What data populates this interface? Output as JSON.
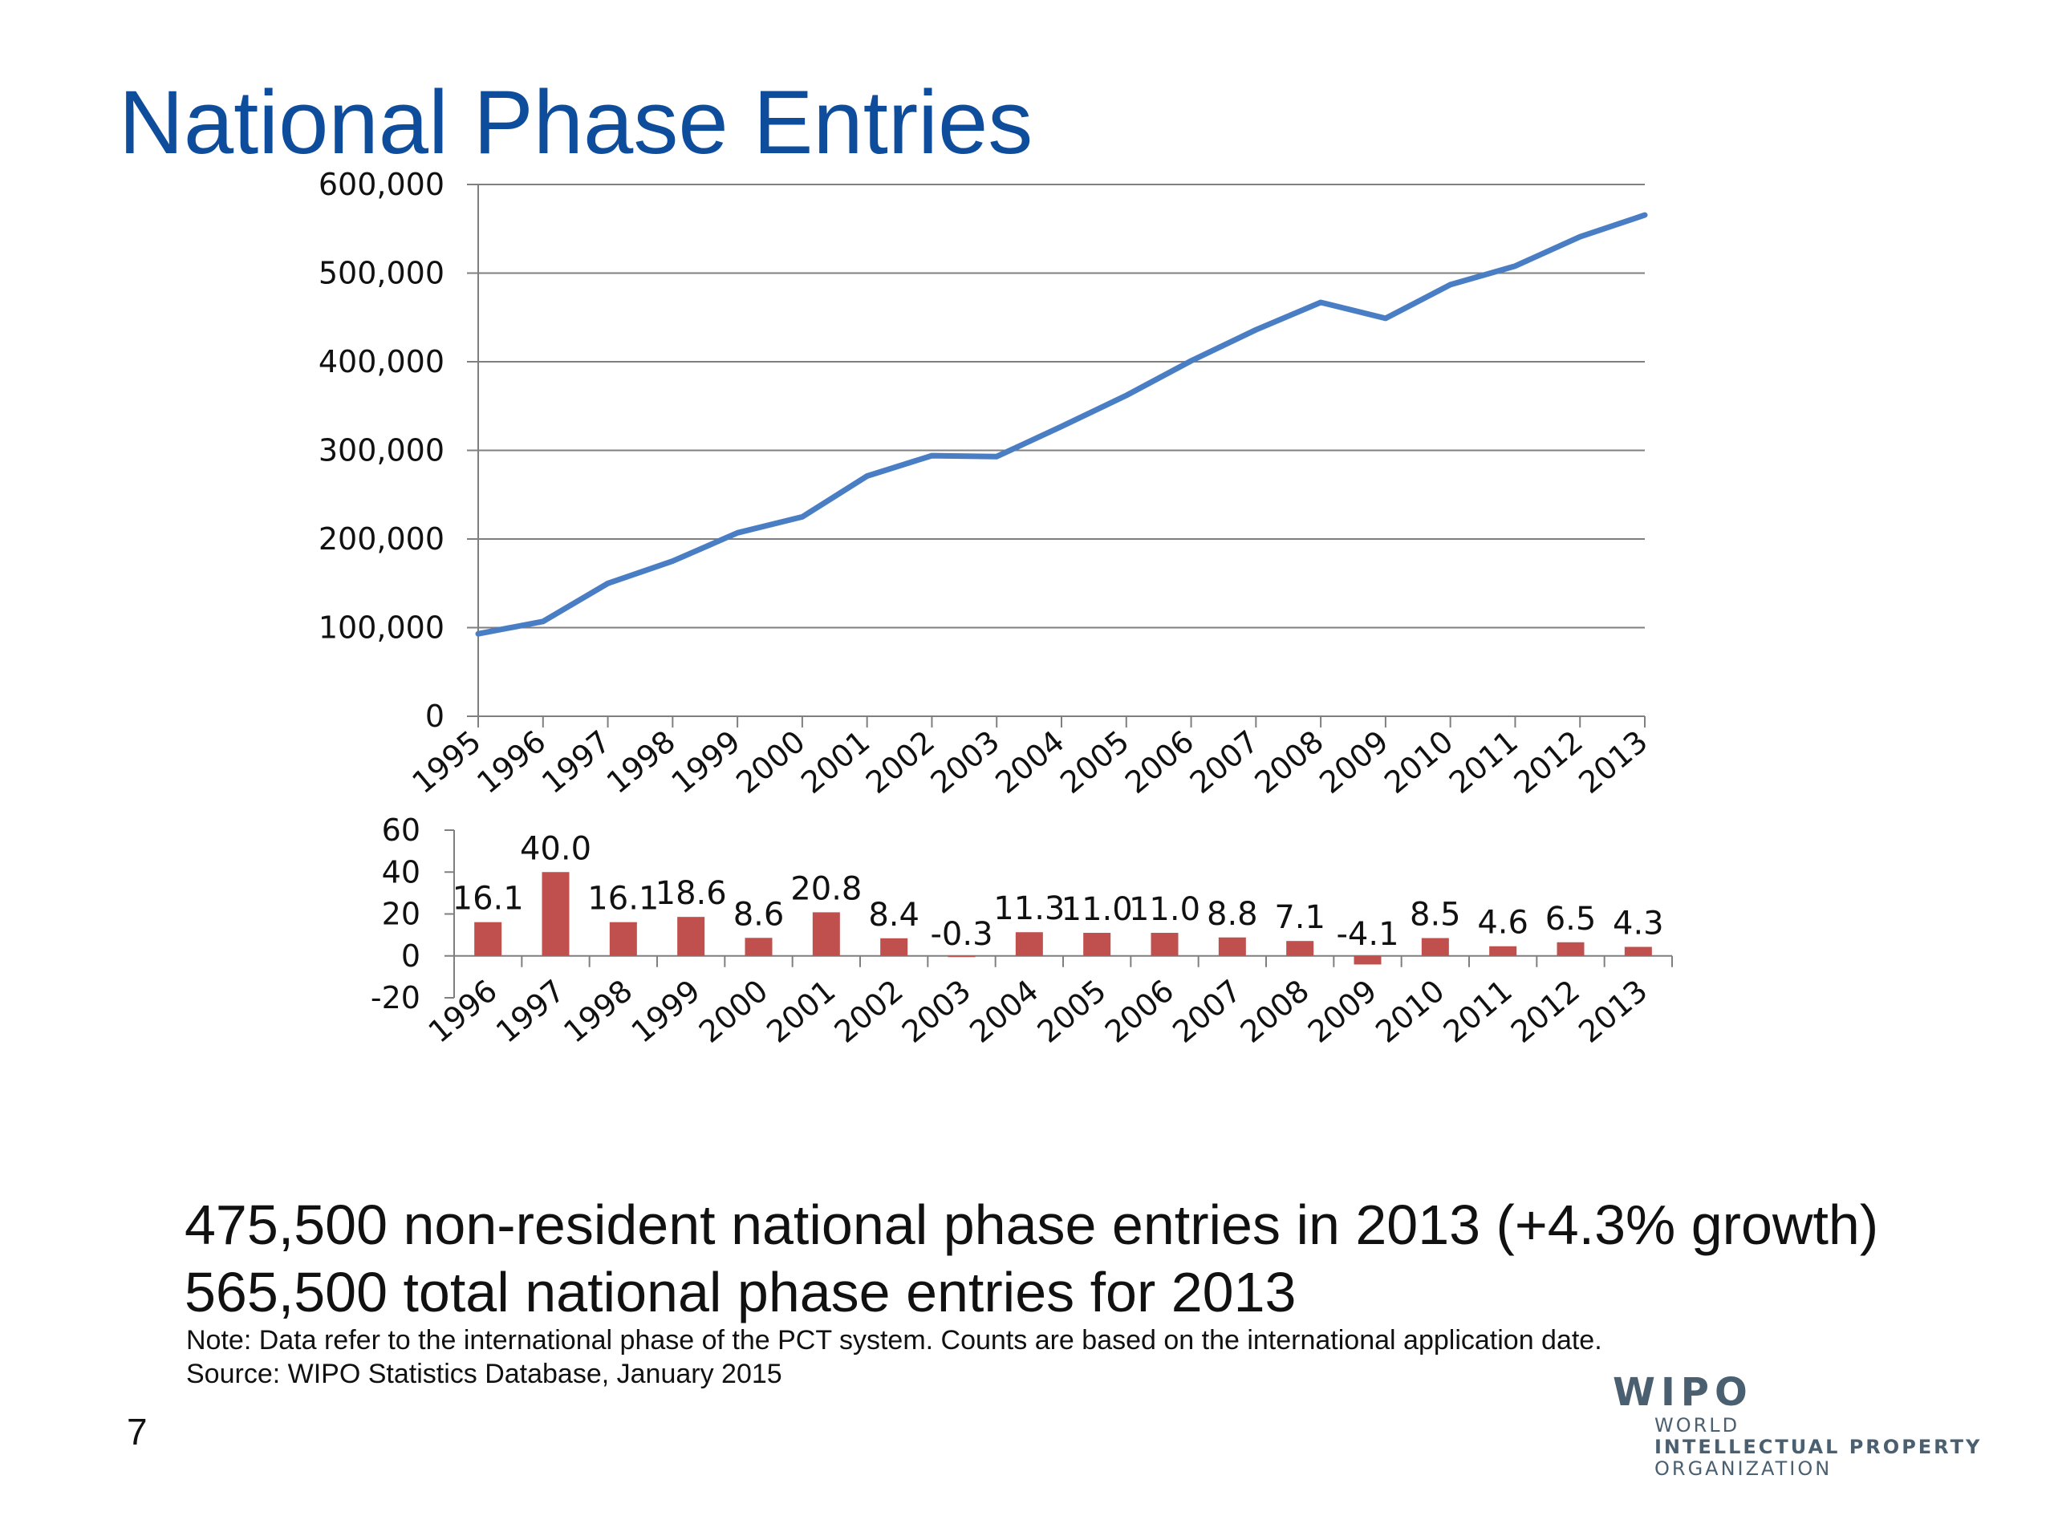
{
  "slide": {
    "title": "National Phase Entries",
    "summary_line1": "475,500 non-resident national phase entries in 2013 (+4.3% growth)",
    "summary_line2": "565,500 total national phase entries for 2013",
    "note": "Note:  Data refer to the international phase of the PCT system.   Counts are based on the international application date.",
    "source": "Source:  WIPO Statistics Database, January 2015",
    "page_number": "7",
    "logo": {
      "main": "WIPO",
      "line1": "WORLD",
      "line2": "INTELLECTUAL PROPERTY",
      "line3": "ORGANIZATION"
    }
  },
  "colors": {
    "title": "#0e4d9c",
    "line": "#4a7ec4",
    "bar": "#c0504d",
    "grid": "#7f7f7f",
    "logo": "#4a5f70"
  },
  "chart_data": [
    {
      "type": "line",
      "x": [
        "1995",
        "1996",
        "1997",
        "1998",
        "1999",
        "2000",
        "2001",
        "2002",
        "2003",
        "2004",
        "2005",
        "2006",
        "2007",
        "2008",
        "2009",
        "2010",
        "2011",
        "2012",
        "2013"
      ],
      "series": [
        {
          "values": [
            93000,
            107000,
            150000,
            175000,
            207000,
            225000,
            271000,
            294000,
            293000,
            327000,
            362000,
            401000,
            436000,
            467000,
            449000,
            487000,
            508000,
            541000,
            565500
          ]
        }
      ],
      "ylim": [
        0,
        600000
      ],
      "yticks": [
        0,
        100000,
        200000,
        300000,
        400000,
        500000,
        600000
      ],
      "ytick_labels": [
        "0",
        "100,000",
        "200,000",
        "300,000",
        "400,000",
        "500,000",
        "600,000"
      ],
      "grid": true
    },
    {
      "type": "bar",
      "categories": [
        "1996",
        "1997",
        "1998",
        "1999",
        "2000",
        "2001",
        "2002",
        "2003",
        "2004",
        "2005",
        "2006",
        "2007",
        "2008",
        "2009",
        "2010",
        "2011",
        "2012",
        "2013"
      ],
      "values": [
        16.1,
        40.0,
        16.1,
        18.6,
        8.6,
        20.8,
        8.4,
        -0.3,
        11.3,
        11.0,
        11.0,
        8.8,
        7.1,
        -4.1,
        8.5,
        4.6,
        6.5,
        4.3
      ],
      "data_labels": [
        "16.1",
        "40.0",
        "16.1",
        "18.6",
        "8.6",
        "20.8",
        "8.4",
        "-0.3",
        "11.3",
        "11.0",
        "11.0",
        "8.8",
        "7.1",
        "-4.1",
        "8.5",
        "4.6",
        "6.5",
        "4.3"
      ],
      "ylim": [
        -20,
        60
      ],
      "yticks": [
        -20,
        0,
        20,
        40,
        60
      ],
      "ytick_labels": [
        "-20",
        "0",
        "20",
        "40",
        "60"
      ],
      "grid": false
    }
  ]
}
